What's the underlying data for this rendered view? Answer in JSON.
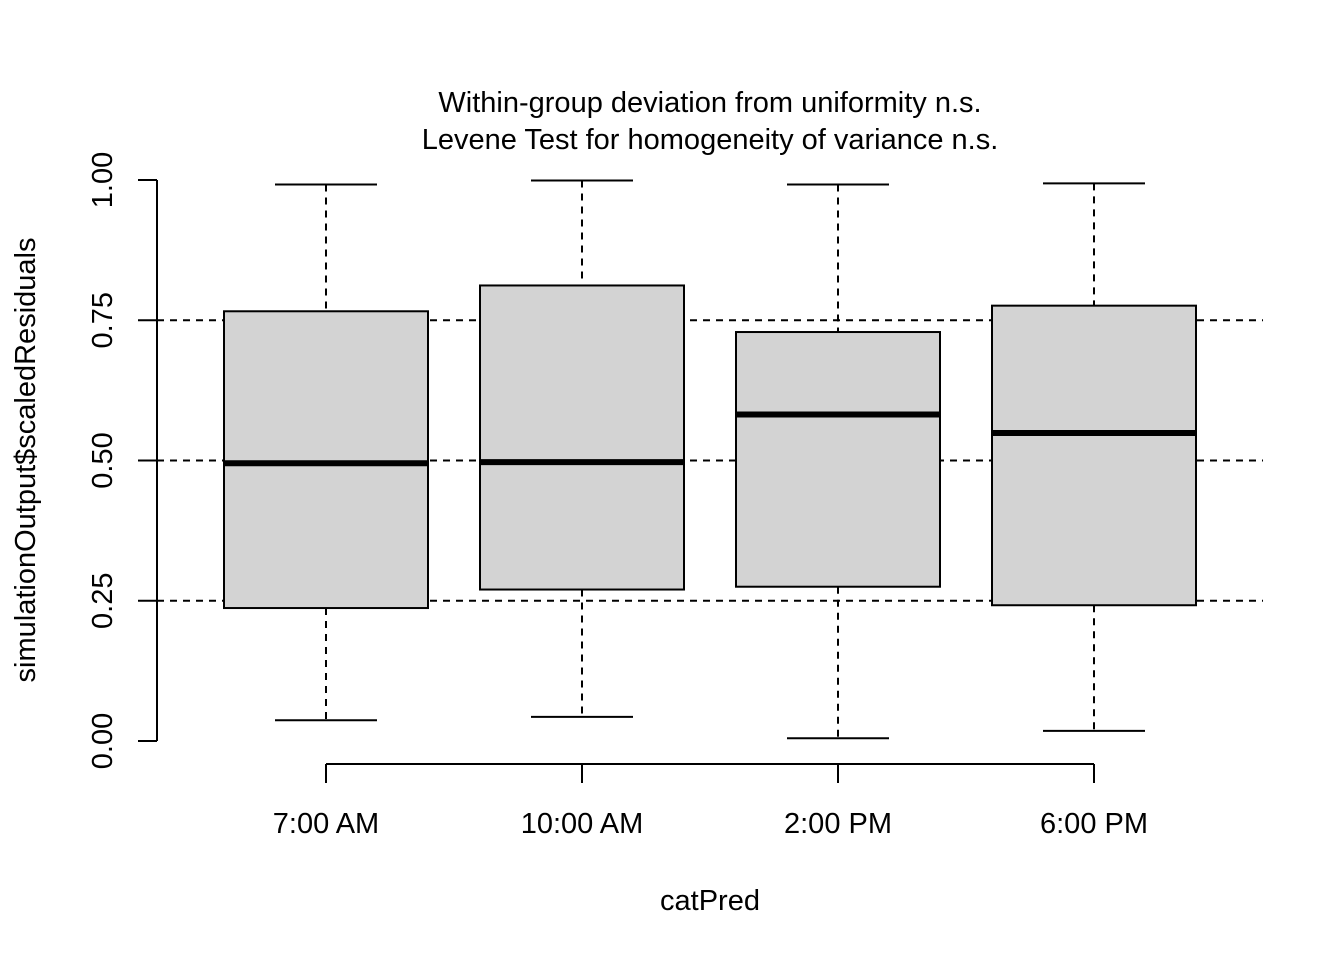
{
  "chart_data": {
    "type": "box",
    "title_lines": [
      "Within-group deviation from uniformity n.s.",
      "Levene Test for homogeneity of variance n.s."
    ],
    "xlabel": "catPred",
    "ylabel": "simulationOutput$scaledResiduals",
    "ylim": [
      0,
      1
    ],
    "yticks": [
      0,
      0.25,
      0.5,
      0.75,
      1
    ],
    "ytick_labels": [
      "0.00",
      "0.25",
      "0.50",
      "0.75",
      "1.00"
    ],
    "reference_lines": [
      0.25,
      0.5,
      0.75
    ],
    "categories": [
      "7:00 AM",
      "10:00 AM",
      "2:00 PM",
      "6:00 PM"
    ],
    "boxes": [
      {
        "min": 0.037,
        "q1": 0.237,
        "median": 0.495,
        "q3": 0.766,
        "max": 0.992
      },
      {
        "min": 0.043,
        "q1": 0.27,
        "median": 0.497,
        "q3": 0.812,
        "max": 0.999
      },
      {
        "min": 0.005,
        "q1": 0.275,
        "median": 0.582,
        "q3": 0.729,
        "max": 0.992
      },
      {
        "min": 0.018,
        "q1": 0.242,
        "median": 0.549,
        "q3": 0.776,
        "max": 0.994
      }
    ],
    "box_fill": "#d3d3d3",
    "line_color": "#000000",
    "grid": false
  }
}
